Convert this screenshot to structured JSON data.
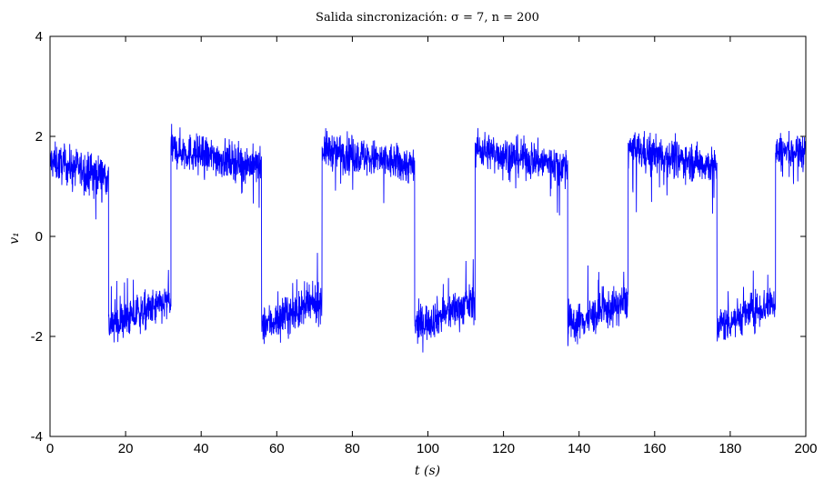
{
  "chart_data": {
    "type": "line",
    "title": "Salida sincronización: σ = 7, n = 200",
    "xlabel": "t (s)",
    "ylabel": "v₁",
    "xlim": [
      0,
      200
    ],
    "ylim": [
      -4,
      4
    ],
    "xticks": [
      0,
      20,
      40,
      60,
      80,
      100,
      120,
      140,
      160,
      180,
      200
    ],
    "yticks": [
      -4,
      -2,
      0,
      2,
      4
    ],
    "xtick_labels": [
      "0",
      "20",
      "40",
      "60",
      "80",
      "100",
      "120",
      "140",
      "160",
      "180",
      "200"
    ],
    "ytick_labels": [
      "-4",
      "-2",
      "0",
      "2",
      "4"
    ],
    "grid": false,
    "series": [
      {
        "color": "#0000ff",
        "noisy": true,
        "segments": [
          {
            "x0": 0,
            "x1": 15.5,
            "level": 1.5,
            "trend": -0.3
          },
          {
            "x0": 15.5,
            "x1": 32,
            "level": -1.8,
            "trend": 0.5
          },
          {
            "x0": 32,
            "x1": 56,
            "level": 1.75,
            "trend": -0.35
          },
          {
            "x0": 56,
            "x1": 72,
            "level": -1.8,
            "trend": 0.5
          },
          {
            "x0": 72,
            "x1": 96.5,
            "level": 1.75,
            "trend": -0.35
          },
          {
            "x0": 96.5,
            "x1": 112.5,
            "level": -1.8,
            "trend": 0.5
          },
          {
            "x0": 112.5,
            "x1": 137,
            "level": 1.75,
            "trend": -0.35
          },
          {
            "x0": 137,
            "x1": 153,
            "level": -1.8,
            "trend": 0.5
          },
          {
            "x0": 153,
            "x1": 176.5,
            "level": 1.75,
            "trend": -0.35
          },
          {
            "x0": 176.5,
            "x1": 192,
            "level": -1.8,
            "trend": 0.5
          },
          {
            "x0": 192,
            "x1": 200,
            "level": 1.7,
            "trend": 0.0
          }
        ]
      }
    ]
  }
}
